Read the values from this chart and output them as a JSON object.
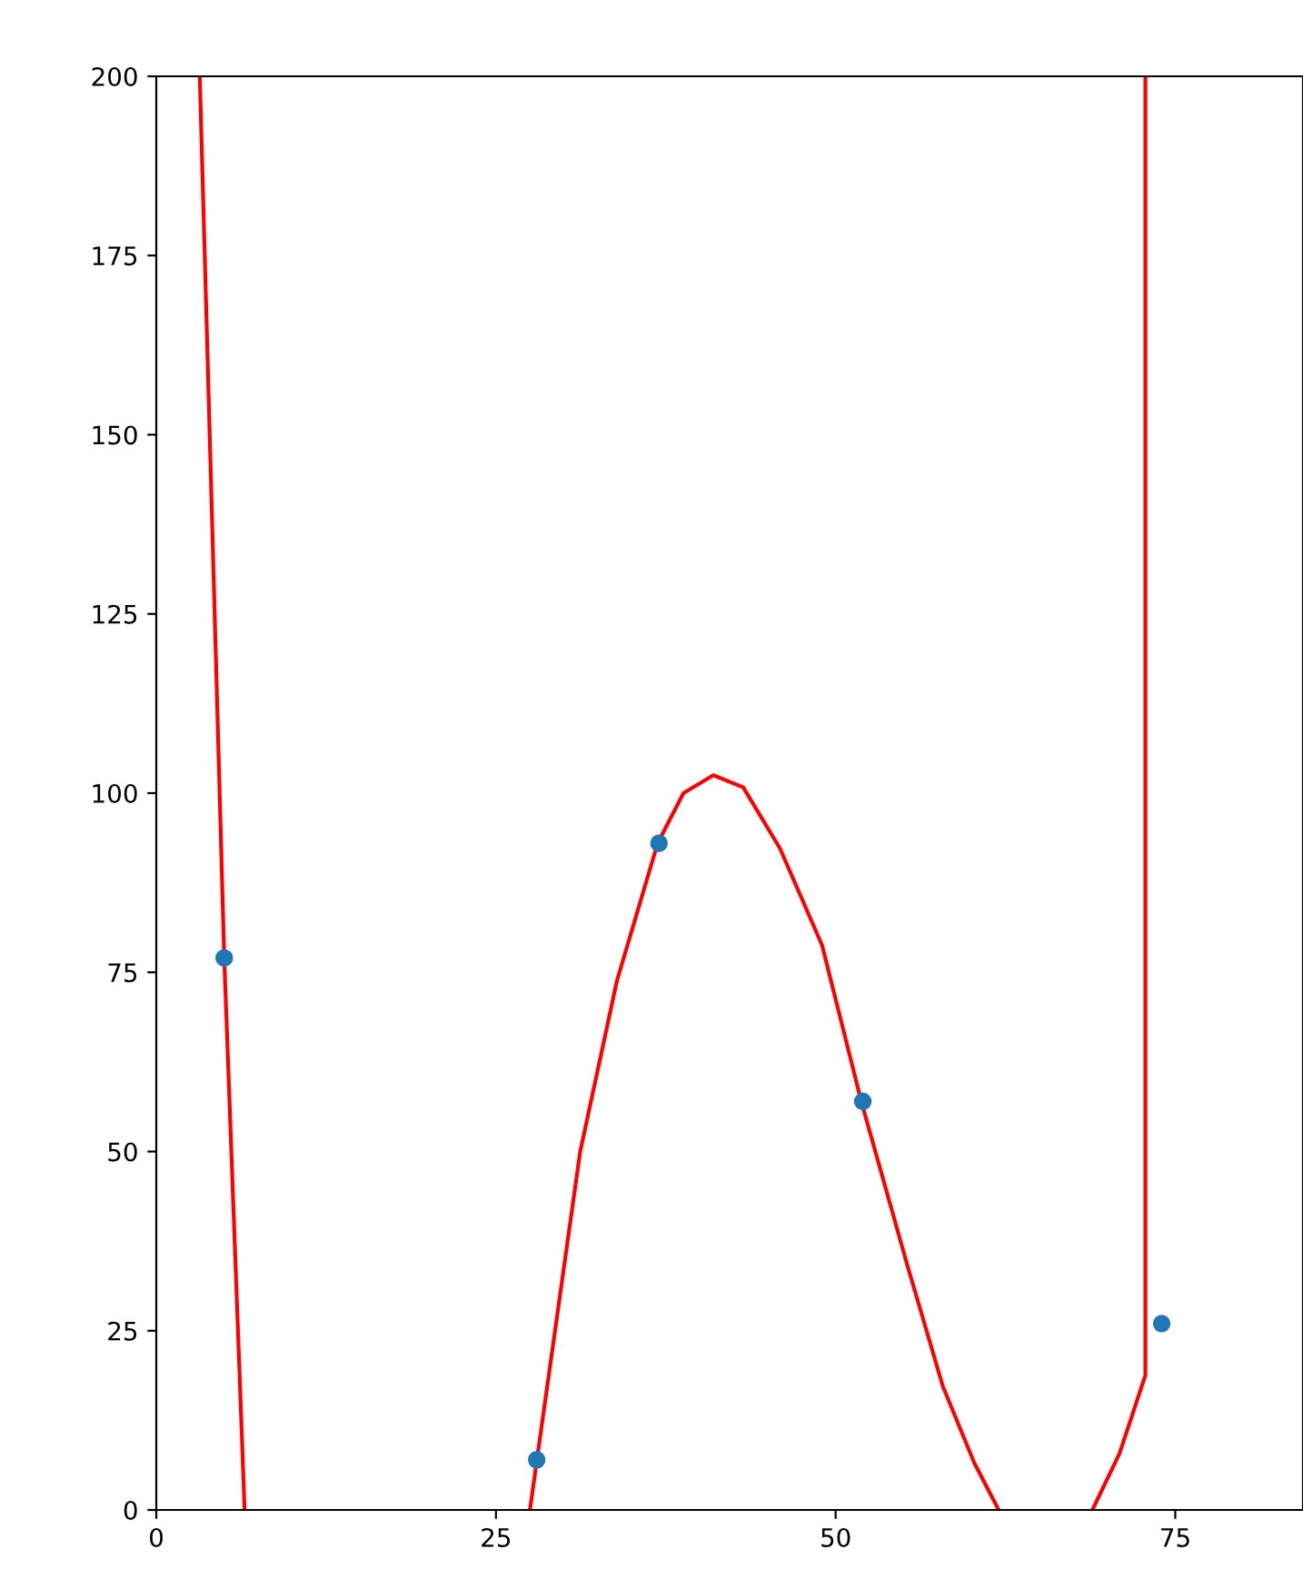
{
  "chart_data": {
    "type": "scatter",
    "xlim": [
      0,
      84.4
    ],
    "ylim": [
      0,
      200
    ],
    "xticks": [
      0,
      25,
      50,
      75
    ],
    "yticks": [
      0,
      25,
      50,
      75,
      100,
      125,
      150,
      175,
      200
    ],
    "grid": false,
    "series": [
      {
        "marker": "circle",
        "color": "#1f77b4",
        "x": [
          5,
          28,
          37,
          52,
          74
        ],
        "values": [
          77,
          7,
          93,
          57,
          26
        ]
      },
      {
        "type": "line",
        "color": "#ff0000",
        "marker": "none",
        "line_style": "solid",
        "x": [
          3.2,
          5,
          6.5,
          17,
          27.5,
          28,
          31.2,
          33.9,
          36.9,
          38.8,
          41.0,
          43.2,
          45.9,
          49.0,
          51.9,
          55.3,
          57.9,
          60.2,
          62.0,
          65,
          68.9,
          70.9,
          72.8,
          72.8
        ],
        "values": [
          200,
          77,
          0,
          null,
          0,
          6.8,
          50,
          73.8,
          93,
          100,
          102.5,
          100.8,
          92.3,
          78.8,
          56.9,
          34,
          17.2,
          6.6,
          0,
          null,
          0,
          7.9,
          18.8,
          200
        ]
      }
    ]
  }
}
